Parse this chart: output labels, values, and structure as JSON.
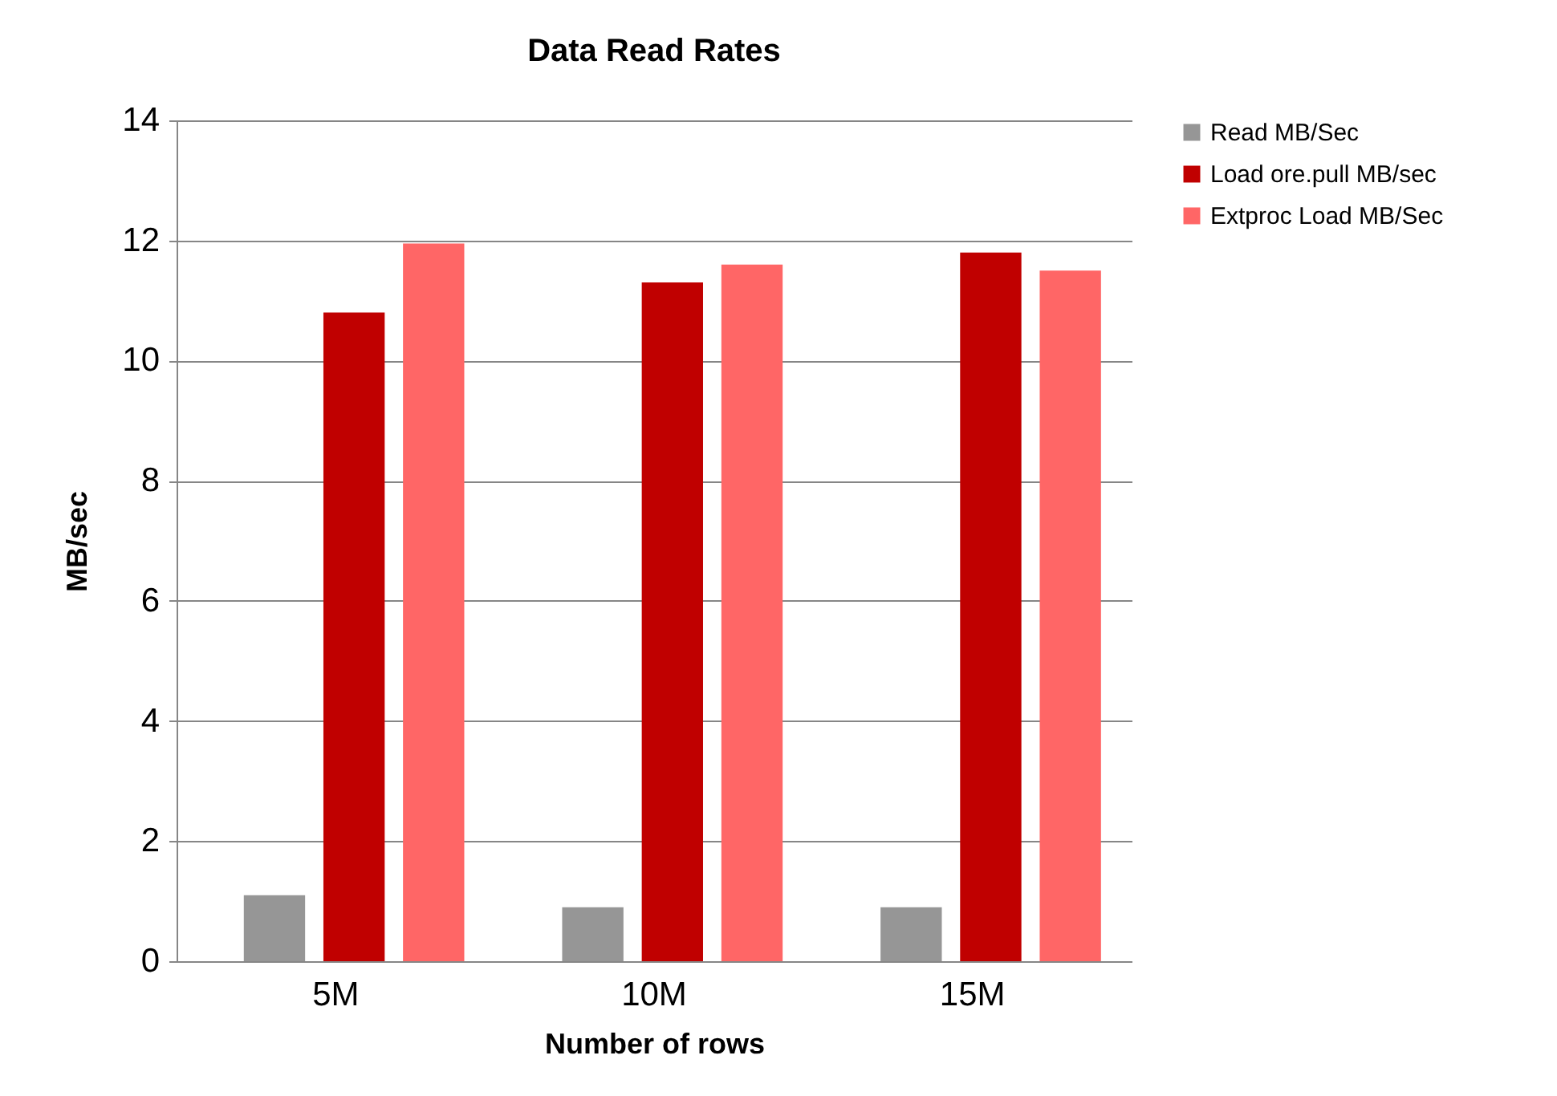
{
  "chart_data": {
    "type": "bar",
    "title": "Data Read Rates",
    "xlabel": "Number of rows",
    "ylabel": "MB/sec",
    "categories": [
      "5M",
      "10M",
      "15M"
    ],
    "series": [
      {
        "name": "Read MB/Sec",
        "color": "#969696",
        "values": [
          1.1,
          0.9,
          0.9
        ]
      },
      {
        "name": "Load ore.pull MB/sec",
        "color": "#c00000",
        "values": [
          10.8,
          11.3,
          11.8
        ]
      },
      {
        "name": "Extproc Load MB/Sec",
        "color": "#ff6666",
        "values": [
          11.95,
          11.6,
          11.5
        ]
      }
    ],
    "ylim": [
      0,
      14
    ],
    "yticks": [
      0,
      2,
      4,
      6,
      8,
      10,
      12,
      14
    ],
    "grid": "y",
    "legend": "right"
  }
}
